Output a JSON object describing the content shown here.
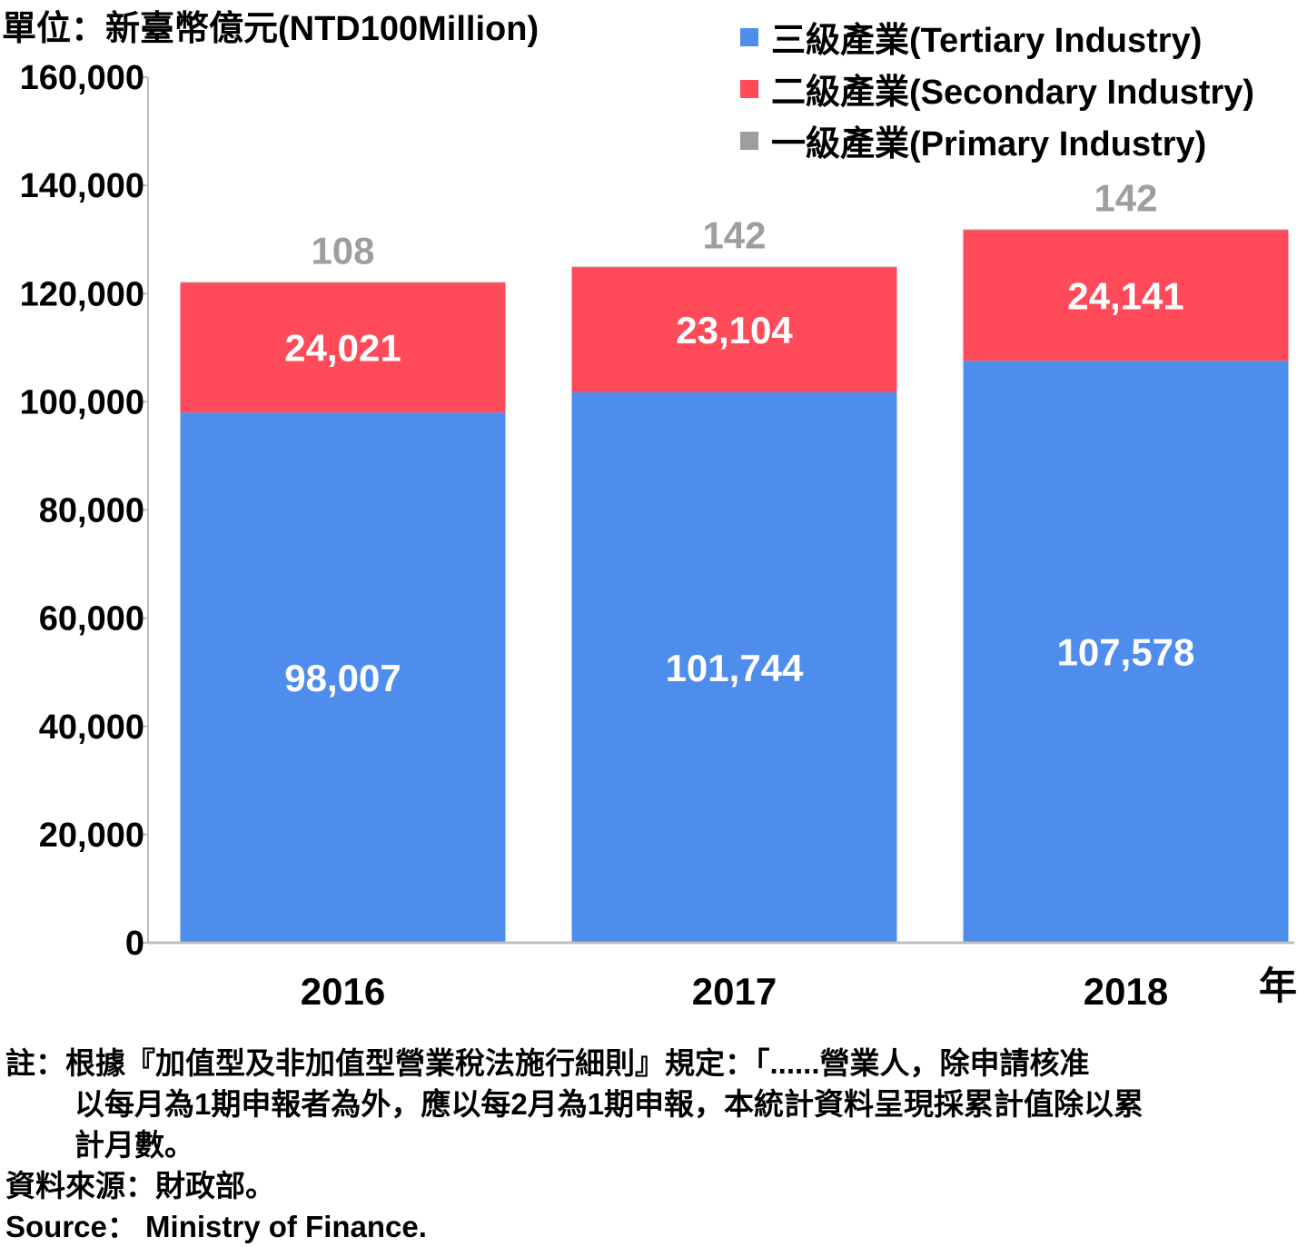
{
  "unit_label": "單位：新臺幣億元(NTD100Million)",
  "x_unit": "年",
  "legend": [
    {
      "label": "三級產業(Tertiary Industry)",
      "color": "#4f8ded"
    },
    {
      "label": "二級產業(Secondary Industry)",
      "color": "#ff4a5a"
    },
    {
      "label": "一級產業(Primary Industry)",
      "color": "#9e9e9e"
    }
  ],
  "chart_data": {
    "type": "bar",
    "stacked": true,
    "categories": [
      "2016",
      "2017",
      "2018"
    ],
    "series": [
      {
        "name": "三級產業(Tertiary Industry)",
        "color": "#4f8ded",
        "values": [
          98007,
          101744,
          107578
        ],
        "labels": [
          "98,007",
          "101,744",
          "107,578"
        ]
      },
      {
        "name": "二級產業(Secondary Industry)",
        "color": "#ff4a5a",
        "values": [
          24021,
          23104,
          24141
        ],
        "labels": [
          "24,021",
          "23,104",
          "24,141"
        ]
      },
      {
        "name": "一級產業(Primary Industry)",
        "color": "#9e9e9e",
        "values": [
          108,
          142,
          142
        ],
        "labels": [
          "108",
          "142",
          "142"
        ]
      }
    ],
    "ylim": [
      0,
      160000
    ],
    "yticks": [
      0,
      20000,
      40000,
      60000,
      80000,
      100000,
      120000,
      140000,
      160000
    ],
    "ytick_labels": [
      "0",
      "20,000",
      "40,000",
      "60,000",
      "80,000",
      "100,000",
      "120,000",
      "140,000",
      "160,000"
    ],
    "grid": false,
    "legend_position": "top-right"
  },
  "notes": {
    "line1": "註：根據『加值型及非加值型營業稅法施行細則』規定：「......營業人，除申請核准",
    "line2": "以每月為1期申報者為外，應以每2月為1期申報，本統計資料呈現採累計值除以累",
    "line3": "計月數。",
    "source_zh": "資料來源：財政部。",
    "source_en": "Source： Ministry of Finance."
  }
}
